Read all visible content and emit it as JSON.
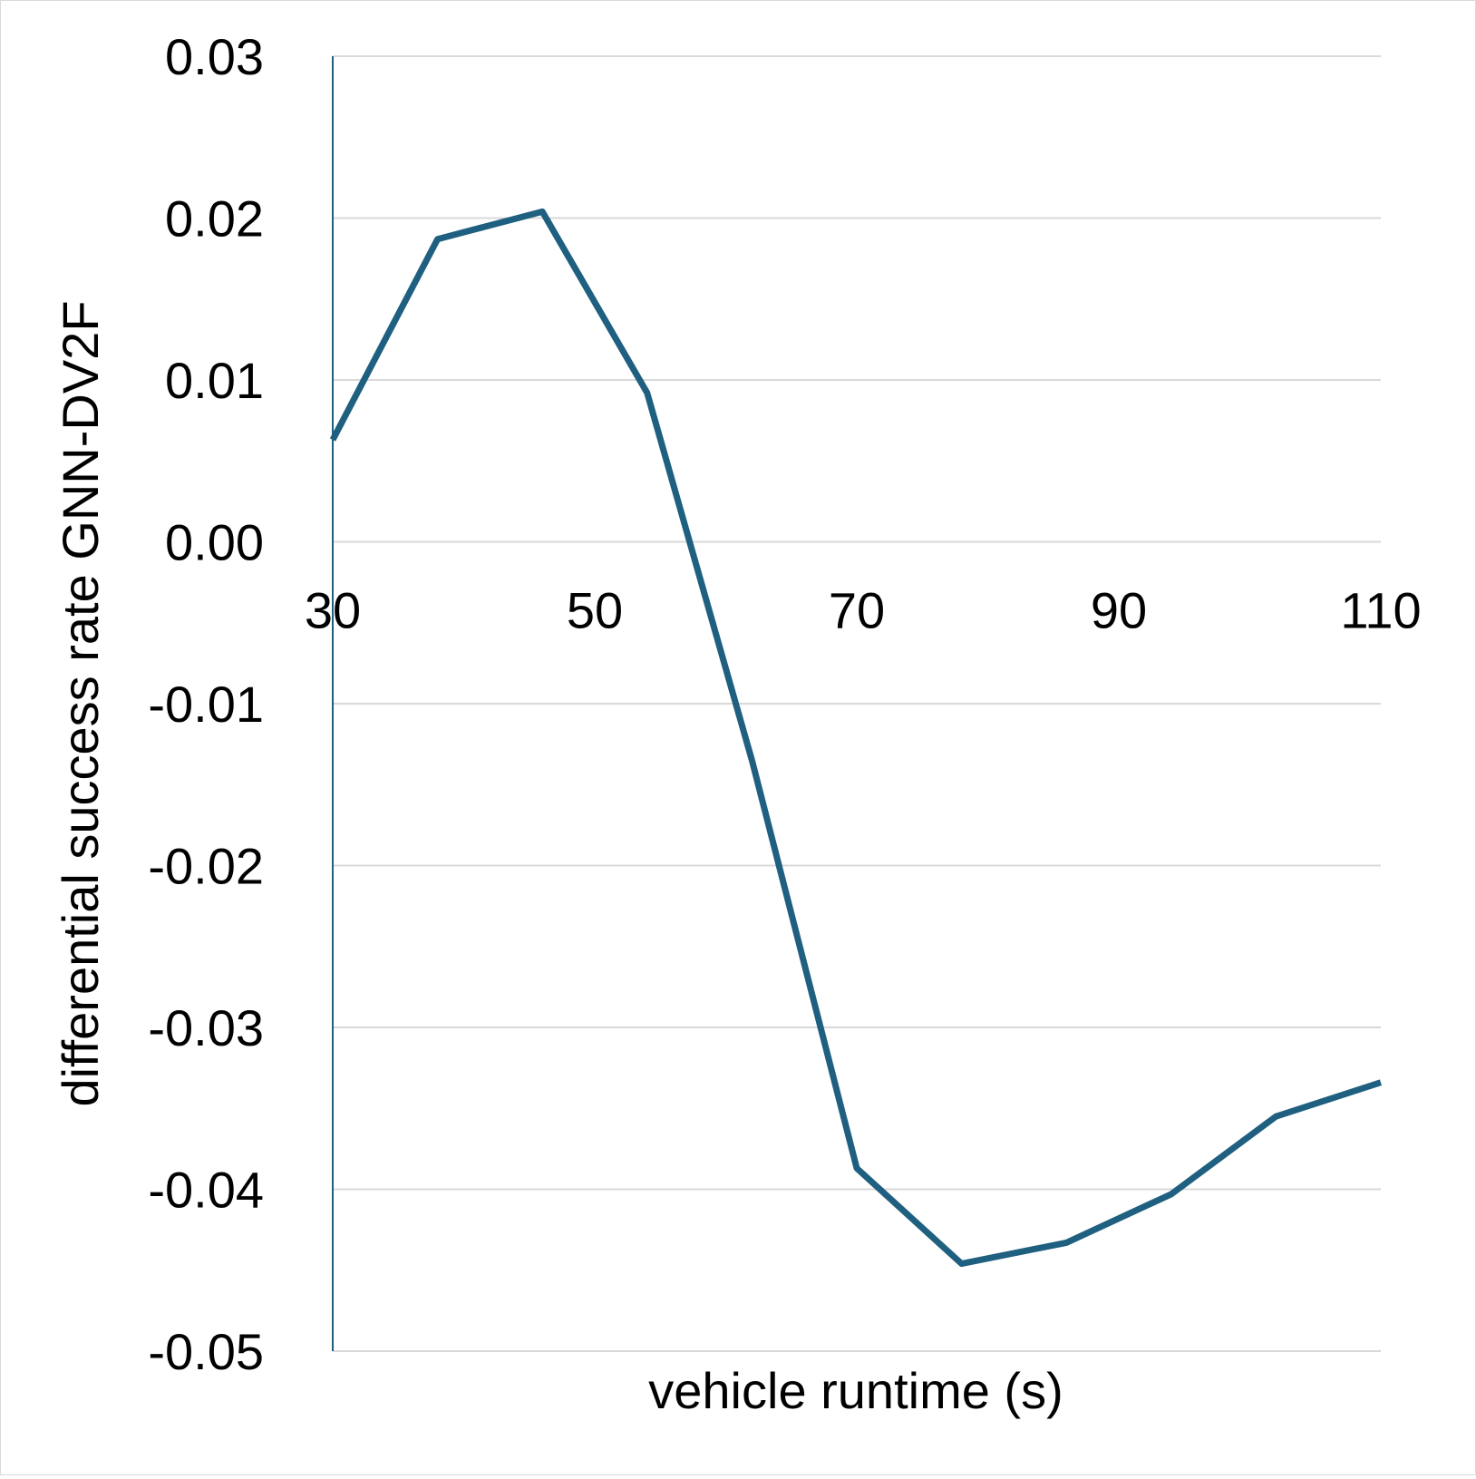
{
  "chart_data": {
    "type": "line",
    "title": "",
    "xlabel": "vehicle runtime (s)",
    "ylabel": "differential success rate GNN-DV2F",
    "xlim": [
      30,
      110
    ],
    "ylim": [
      -0.05,
      0.03
    ],
    "x_ticks": [
      30,
      50,
      70,
      90,
      110
    ],
    "x_tick_labels": [
      "30",
      "50",
      "70",
      "90",
      "110"
    ],
    "y_ticks": [
      0.03,
      0.02,
      0.01,
      0.0,
      -0.01,
      -0.02,
      -0.03,
      -0.04,
      -0.05
    ],
    "y_tick_labels": [
      "0.03",
      "0.02",
      "0.01",
      "0.00",
      "-0.01",
      "-0.02",
      "-0.03",
      "-0.04",
      "-0.05"
    ],
    "grid": true,
    "legend": "none",
    "series": [
      {
        "color": "#1f5f80",
        "x": [
          30,
          38,
          46,
          54,
          62,
          70,
          78,
          86,
          94,
          102,
          110
        ],
        "y": [
          0.0063,
          0.0187,
          0.0204,
          0.0092,
          -0.0135,
          -0.0387,
          -0.0446,
          -0.0433,
          -0.0403,
          -0.0355,
          -0.0334
        ]
      }
    ]
  }
}
